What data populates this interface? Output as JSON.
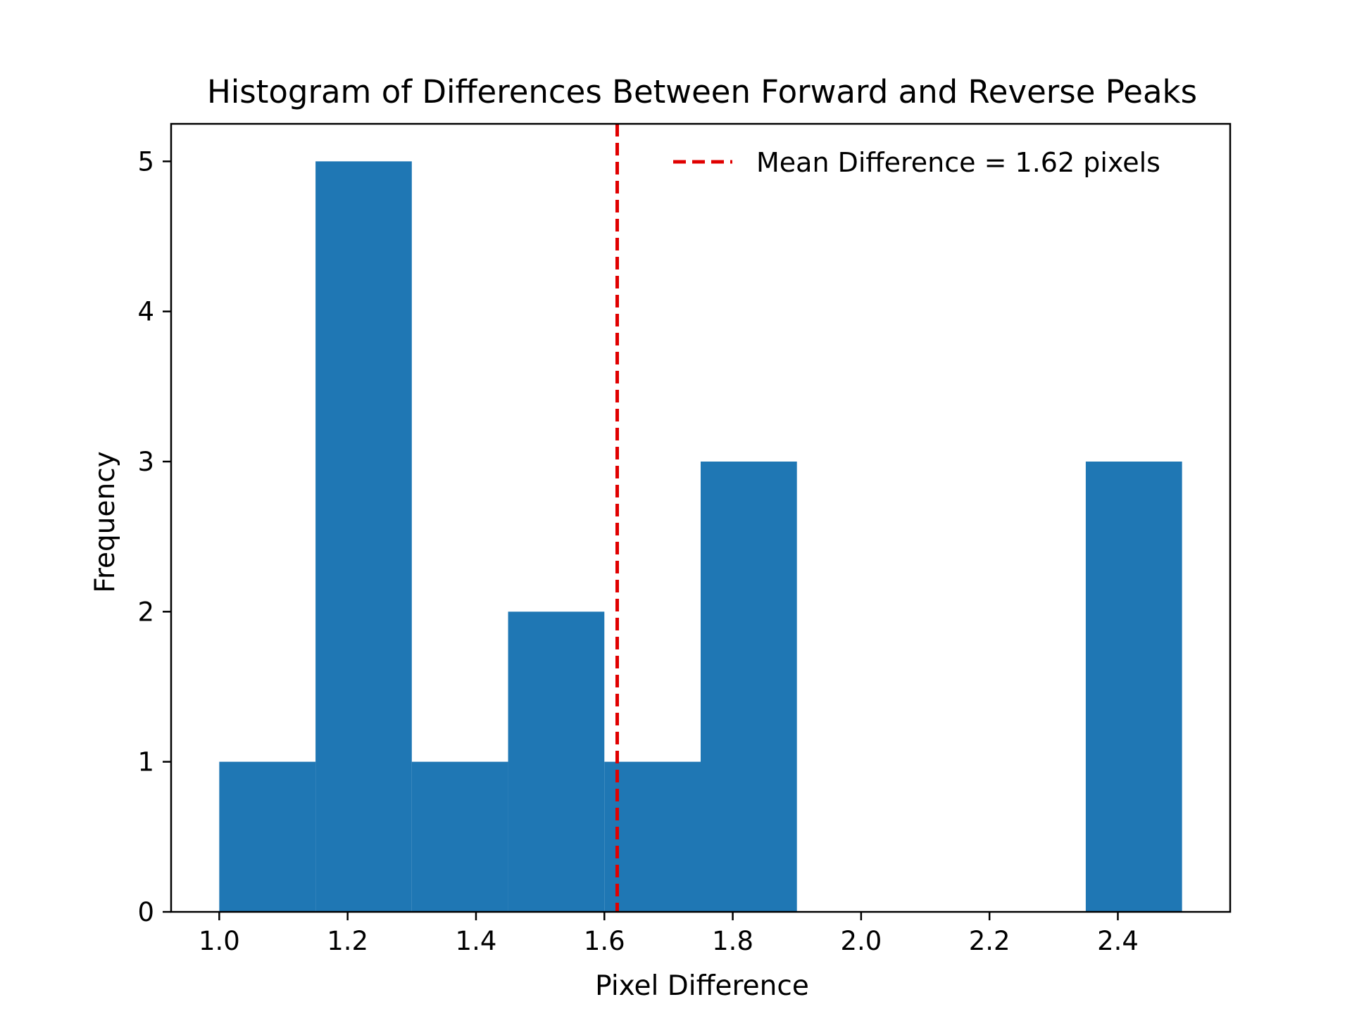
{
  "chart_data": {
    "type": "bar",
    "title": "Histogram of Differences Between Forward and Reverse Peaks",
    "xlabel": "Pixel Difference",
    "ylabel": "Frequency",
    "bins": [
      {
        "start": 1.0,
        "end": 1.15,
        "count": 1
      },
      {
        "start": 1.15,
        "end": 1.3,
        "count": 5
      },
      {
        "start": 1.3,
        "end": 1.45,
        "count": 1
      },
      {
        "start": 1.45,
        "end": 1.6,
        "count": 2
      },
      {
        "start": 1.6,
        "end": 1.75,
        "count": 1
      },
      {
        "start": 1.75,
        "end": 1.9,
        "count": 3
      },
      {
        "start": 1.9,
        "end": 2.05,
        "count": 0
      },
      {
        "start": 2.05,
        "end": 2.2,
        "count": 0
      },
      {
        "start": 2.2,
        "end": 2.35,
        "count": 0
      },
      {
        "start": 2.35,
        "end": 2.5,
        "count": 3
      }
    ],
    "mean_line": {
      "value": 1.62,
      "label": "Mean Difference = 1.62 pixels",
      "color": "#e00000",
      "style": "dashed"
    },
    "bar_color": "#1f77b4",
    "xlim": [
      0.925,
      2.575
    ],
    "ylim": [
      0,
      5.25
    ],
    "xticks": [
      "1.0",
      "1.2",
      "1.4",
      "1.6",
      "1.8",
      "2.0",
      "2.2",
      "2.4"
    ],
    "yticks": [
      "0",
      "1",
      "2",
      "3",
      "4",
      "5"
    ],
    "grid": false,
    "legend_position": "top-right"
  }
}
